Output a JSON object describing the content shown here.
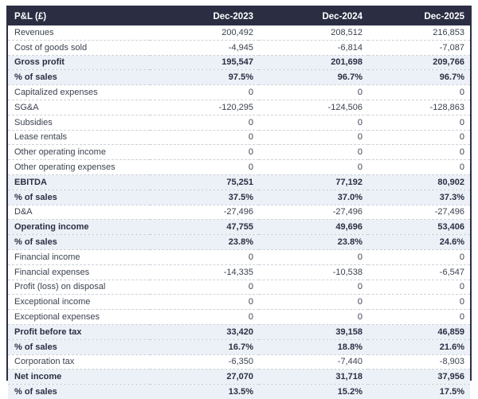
{
  "chart_data": {
    "type": "table",
    "title": "P&L (£)",
    "columns": [
      "Dec-2023",
      "Dec-2024",
      "Dec-2025"
    ],
    "rows": [
      {
        "label": "Revenues",
        "values": [
          "200,492",
          "208,512",
          "216,853"
        ],
        "emphasis": false
      },
      {
        "label": "Cost of goods sold",
        "values": [
          "-4,945",
          "-6,814",
          "-7,087"
        ],
        "emphasis": false
      },
      {
        "label": "Gross profit",
        "values": [
          "195,547",
          "201,698",
          "209,766"
        ],
        "emphasis": true
      },
      {
        "label": "% of sales",
        "values": [
          "97.5%",
          "96.7%",
          "96.7%"
        ],
        "emphasis": true
      },
      {
        "label": "Capitalized expenses",
        "values": [
          "0",
          "0",
          "0"
        ],
        "emphasis": false
      },
      {
        "label": "SG&A",
        "values": [
          "-120,295",
          "-124,506",
          "-128,863"
        ],
        "emphasis": false
      },
      {
        "label": "Subsidies",
        "values": [
          "0",
          "0",
          "0"
        ],
        "emphasis": false
      },
      {
        "label": "Lease rentals",
        "values": [
          "0",
          "0",
          "0"
        ],
        "emphasis": false
      },
      {
        "label": "Other operating income",
        "values": [
          "0",
          "0",
          "0"
        ],
        "emphasis": false
      },
      {
        "label": "Other operating expenses",
        "values": [
          "0",
          "0",
          "0"
        ],
        "emphasis": false
      },
      {
        "label": "EBITDA",
        "values": [
          "75,251",
          "77,192",
          "80,902"
        ],
        "emphasis": true
      },
      {
        "label": "% of sales",
        "values": [
          "37.5%",
          "37.0%",
          "37.3%"
        ],
        "emphasis": true
      },
      {
        "label": "D&A",
        "values": [
          "-27,496",
          "-27,496",
          "-27,496"
        ],
        "emphasis": false
      },
      {
        "label": "Operating income",
        "values": [
          "47,755",
          "49,696",
          "53,406"
        ],
        "emphasis": true
      },
      {
        "label": "% of sales",
        "values": [
          "23.8%",
          "23.8%",
          "24.6%"
        ],
        "emphasis": true
      },
      {
        "label": "Financial income",
        "values": [
          "0",
          "0",
          "0"
        ],
        "emphasis": false
      },
      {
        "label": "Financial expenses",
        "values": [
          "-14,335",
          "-10,538",
          "-6,547"
        ],
        "emphasis": false
      },
      {
        "label": "Profit (loss) on disposal",
        "values": [
          "0",
          "0",
          "0"
        ],
        "emphasis": false
      },
      {
        "label": "Exceptional income",
        "values": [
          "0",
          "0",
          "0"
        ],
        "emphasis": false
      },
      {
        "label": "Exceptional expenses",
        "values": [
          "0",
          "0",
          "0"
        ],
        "emphasis": false
      },
      {
        "label": "Profit before tax",
        "values": [
          "33,420",
          "39,158",
          "46,859"
        ],
        "emphasis": true
      },
      {
        "label": "% of sales",
        "values": [
          "16.7%",
          "18.8%",
          "21.6%"
        ],
        "emphasis": true
      },
      {
        "label": "Corporation tax",
        "values": [
          "-6,350",
          "-7,440",
          "-8,903"
        ],
        "emphasis": false
      },
      {
        "label": "Net income",
        "values": [
          "27,070",
          "31,718",
          "37,956"
        ],
        "emphasis": true
      },
      {
        "label": "% of sales",
        "values": [
          "13.5%",
          "15.2%",
          "17.5%"
        ],
        "emphasis": true
      }
    ]
  },
  "colors": {
    "header_bg": "#2b2e43",
    "header_text": "#ffffff",
    "emphasis_bg": "#ecf1f7",
    "emphasis_text": "#2b2e43",
    "body_text": "#3b4250",
    "row_divider": "#ccd2d9",
    "table_border": "#2b2e43"
  }
}
